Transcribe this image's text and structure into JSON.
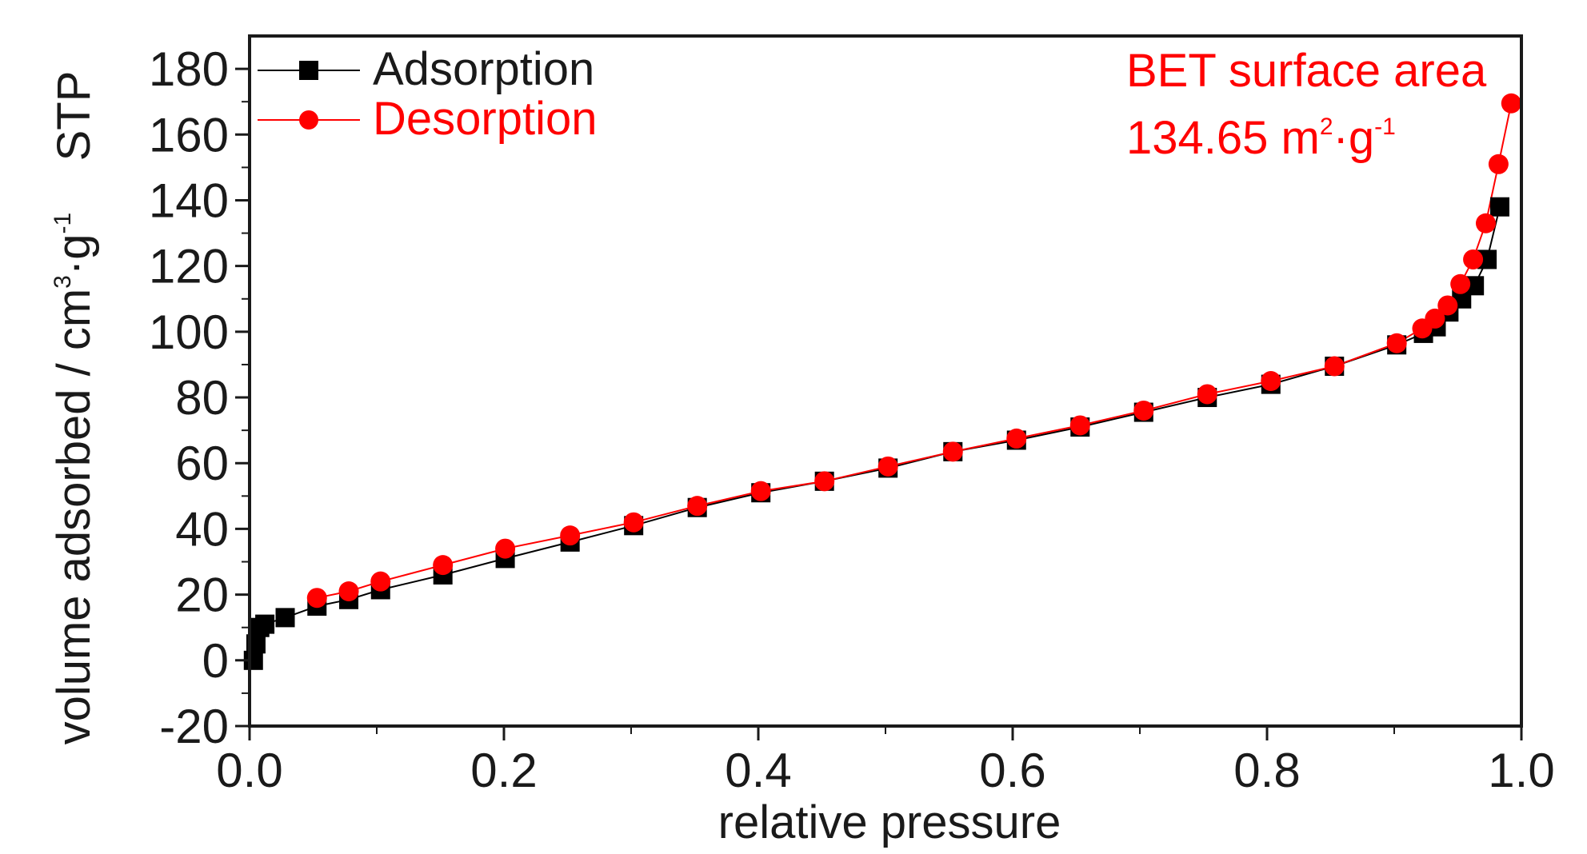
{
  "chart_data": {
    "type": "line",
    "xlabel": "relative pressure",
    "ylabel": {
      "main": "volume adsorbed / cm",
      "sup1": "3",
      "mid": "·g",
      "sup2": "-1",
      "tail": "STP"
    },
    "xlim": [
      0.0,
      1.0
    ],
    "ylim": [
      -20,
      190
    ],
    "xticks": [
      0.0,
      0.2,
      0.4,
      0.6,
      0.8,
      1.0
    ],
    "xtick_labels": [
      "0.0",
      "0.2",
      "0.4",
      "0.6",
      "0.8",
      "1.0"
    ],
    "yticks": [
      -20,
      0,
      20,
      40,
      60,
      80,
      100,
      120,
      140,
      160,
      180
    ],
    "ytick_labels": [
      "-20",
      "0",
      "20",
      "40",
      "60",
      "80",
      "100",
      "120",
      "140",
      "160",
      "180"
    ],
    "grid": false,
    "legend_position": "top-left",
    "annotation": {
      "line1": "BET surface area",
      "line2_main": "134.65 m",
      "line2_sup1": "2",
      "line2_mid": "·g",
      "line2_sup2": "-1"
    },
    "series": [
      {
        "name": "Adsorption",
        "color": "#000000",
        "marker": "square",
        "x": [
          0.003,
          0.005,
          0.008,
          0.012,
          0.028,
          0.053,
          0.078,
          0.103,
          0.152,
          0.201,
          0.252,
          0.302,
          0.352,
          0.402,
          0.452,
          0.502,
          0.553,
          0.603,
          0.653,
          0.703,
          0.753,
          0.803,
          0.853,
          0.902,
          0.923,
          0.933,
          0.943,
          0.953,
          0.963,
          0.973,
          0.983
        ],
        "y": [
          0,
          5,
          10,
          11,
          13,
          16.5,
          18.5,
          21.5,
          26,
          31,
          36,
          41,
          46.5,
          51,
          54.5,
          58.5,
          63.5,
          67,
          71,
          75.5,
          80,
          84,
          89.5,
          96,
          99.5,
          101.5,
          106,
          110,
          114,
          122,
          138
        ]
      },
      {
        "name": "Desorption",
        "color": "#ff0000",
        "marker": "circle",
        "x": [
          0.992,
          0.982,
          0.972,
          0.962,
          0.952,
          0.942,
          0.932,
          0.922,
          0.902,
          0.853,
          0.803,
          0.753,
          0.703,
          0.653,
          0.603,
          0.553,
          0.502,
          0.452,
          0.402,
          0.352,
          0.302,
          0.252,
          0.201,
          0.152,
          0.103,
          0.078,
          0.053
        ],
        "y": [
          169.5,
          151,
          133,
          122,
          114.5,
          108,
          104,
          101,
          96.5,
          89.5,
          85,
          81,
          76,
          71.5,
          67.5,
          63.5,
          59,
          54.5,
          51.5,
          47,
          42,
          38,
          34,
          29,
          24,
          21,
          19
        ]
      }
    ]
  }
}
